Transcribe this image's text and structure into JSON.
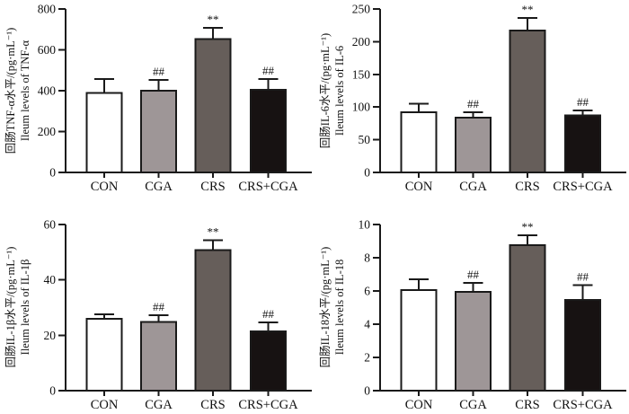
{
  "figure": {
    "description": "Four bar charts of ileum cytokine levels (TNF-α, IL-6, IL-1β, IL-18) across CON, CGA, CRS and CRS+CGA groups"
  },
  "colors": {
    "bar_fills": [
      "#ffffff",
      "#9e9697",
      "#665e5a",
      "#171212"
    ],
    "outline": "#1a1a1a",
    "background": "#ffffff"
  },
  "groups": [
    "CON",
    "CGA",
    "CRS",
    "CRS+CGA"
  ],
  "chart_data": [
    {
      "type": "bar",
      "title": "",
      "ylabel_cn": "回肠TNF-α水平/(pg·mL⁻¹)",
      "ylabel_en": "Ileum levels of TNF-α",
      "categories": [
        "CON",
        "CGA",
        "CRS",
        "CRS+CGA"
      ],
      "values": [
        390,
        401,
        653,
        404
      ],
      "errors": [
        67,
        51,
        54,
        53
      ],
      "annotations": [
        "",
        "##",
        "**",
        "##"
      ],
      "xlabel": "",
      "ylim": [
        0,
        800
      ],
      "yticks": [
        0,
        200,
        400,
        600,
        800
      ],
      "grid": false,
      "legend": "none"
    },
    {
      "type": "bar",
      "title": "",
      "ylabel_cn": "回肠IL-6水平/(pg·mL⁻¹)",
      "ylabel_en": "Ileum levels of IL-6",
      "categories": [
        "CON",
        "CGA",
        "CRS",
        "CRS+CGA"
      ],
      "values": [
        92,
        84,
        217,
        87
      ],
      "errors": [
        13,
        8,
        19,
        8
      ],
      "annotations": [
        "",
        "##",
        "**",
        "##"
      ],
      "xlabel": "",
      "ylim": [
        0,
        250
      ],
      "yticks": [
        0,
        50,
        100,
        150,
        200,
        250
      ],
      "grid": false,
      "legend": "none"
    },
    {
      "type": "bar",
      "title": "",
      "ylabel_cn": "回肠IL-1β水平/(pg·mL⁻¹)",
      "ylabel_en": "Ileum levels of IL-1β",
      "categories": [
        "CON",
        "CGA",
        "CRS",
        "CRS+CGA"
      ],
      "values": [
        26,
        24.8,
        50.8,
        21.4
      ],
      "errors": [
        1.6,
        2.5,
        3.6,
        3.2
      ],
      "annotations": [
        "",
        "##",
        "**",
        "##"
      ],
      "xlabel": "",
      "ylim": [
        0,
        60
      ],
      "yticks": [
        0,
        20,
        40,
        60
      ],
      "grid": false,
      "legend": "none"
    },
    {
      "type": "bar",
      "title": "",
      "ylabel_cn": "回肠IL-18水平/(pg·mL⁻¹)",
      "ylabel_en": "Ileum levels of IL-18",
      "categories": [
        "CON",
        "CGA",
        "CRS",
        "CRS+CGA"
      ],
      "values": [
        6.05,
        5.95,
        8.75,
        5.45
      ],
      "errors": [
        0.65,
        0.55,
        0.6,
        0.9
      ],
      "annotations": [
        "",
        "##",
        "**",
        "##"
      ],
      "xlabel": "",
      "ylim": [
        0,
        10
      ],
      "yticks": [
        0,
        2,
        4,
        6,
        8,
        10
      ],
      "grid": false,
      "legend": "none"
    }
  ]
}
